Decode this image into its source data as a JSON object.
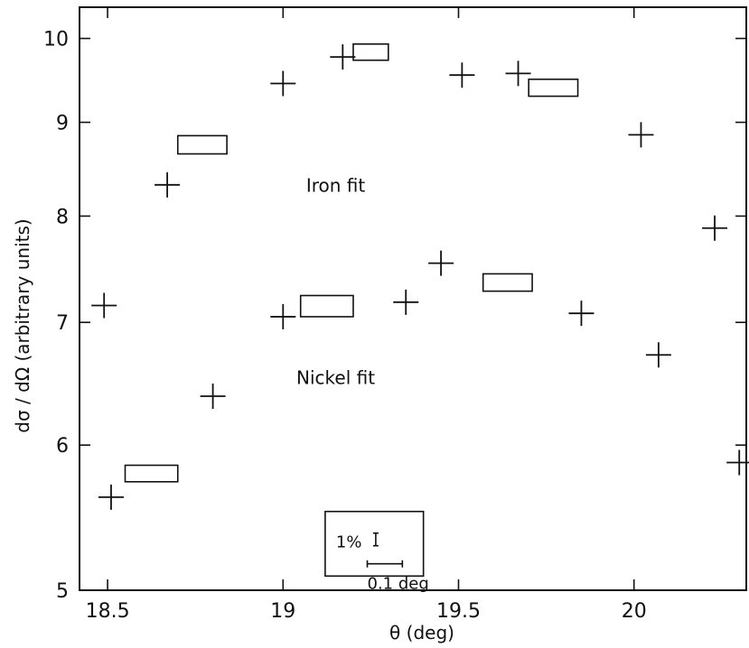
{
  "chart_data": {
    "type": "scatter",
    "title": "",
    "xlabel": "θ   (deg)",
    "ylabel": "dσ / dΩ    (arbitrary units)",
    "xlim": [
      18.42,
      20.32
    ],
    "ylim": [
      5,
      10.4
    ],
    "y_scale": "log",
    "grid": false,
    "x_ticks": [
      18.5,
      19,
      19.5,
      20
    ],
    "x_tick_labels": [
      "18.5",
      "19",
      "19.5",
      "20"
    ],
    "y_ticks": [
      5,
      6,
      7,
      8,
      9,
      10
    ],
    "y_tick_labels": [
      "5",
      "6",
      "7",
      "8",
      "9",
      "10"
    ],
    "series": [
      {
        "name": "",
        "marker": "cross",
        "points": [
          {
            "x": 18.49,
            "y": 7.15
          },
          {
            "x": 18.67,
            "y": 8.32
          },
          {
            "x": 19.0,
            "y": 9.45
          },
          {
            "x": 19.17,
            "y": 9.77
          },
          {
            "x": 19.51,
            "y": 9.55
          },
          {
            "x": 19.67,
            "y": 9.57
          },
          {
            "x": 20.02,
            "y": 8.86
          },
          {
            "x": 20.23,
            "y": 7.88
          },
          {
            "x": 18.51,
            "y": 5.62
          },
          {
            "x": 18.8,
            "y": 6.38
          },
          {
            "x": 19.0,
            "y": 7.05
          },
          {
            "x": 19.35,
            "y": 7.18
          },
          {
            "x": 19.45,
            "y": 7.54
          },
          {
            "x": 19.85,
            "y": 7.08
          },
          {
            "x": 20.07,
            "y": 6.72
          },
          {
            "x": 20.3,
            "y": 5.87
          }
        ]
      },
      {
        "name": "Iron fit",
        "marker": "box",
        "boxes": [
          {
            "x0": 18.7,
            "x1": 18.84,
            "y0": 8.65,
            "y1": 8.85
          },
          {
            "x0": 19.2,
            "x1": 19.3,
            "y0": 9.73,
            "y1": 9.93
          },
          {
            "x0": 19.7,
            "x1": 19.84,
            "y0": 9.3,
            "y1": 9.5
          }
        ]
      },
      {
        "name": "Nickel fit",
        "marker": "box",
        "boxes": [
          {
            "x0": 18.55,
            "x1": 18.7,
            "y0": 5.73,
            "y1": 5.85
          },
          {
            "x0": 19.05,
            "x1": 19.2,
            "y0": 7.05,
            "y1": 7.24
          },
          {
            "x0": 19.57,
            "x1": 19.71,
            "y0": 7.28,
            "y1": 7.44
          }
        ]
      }
    ],
    "annotations": [
      "Iron fit",
      "Nickel fit"
    ],
    "legend": {
      "placement": "bottom-center",
      "items": [
        "1%",
        "0.1 deg"
      ]
    }
  }
}
